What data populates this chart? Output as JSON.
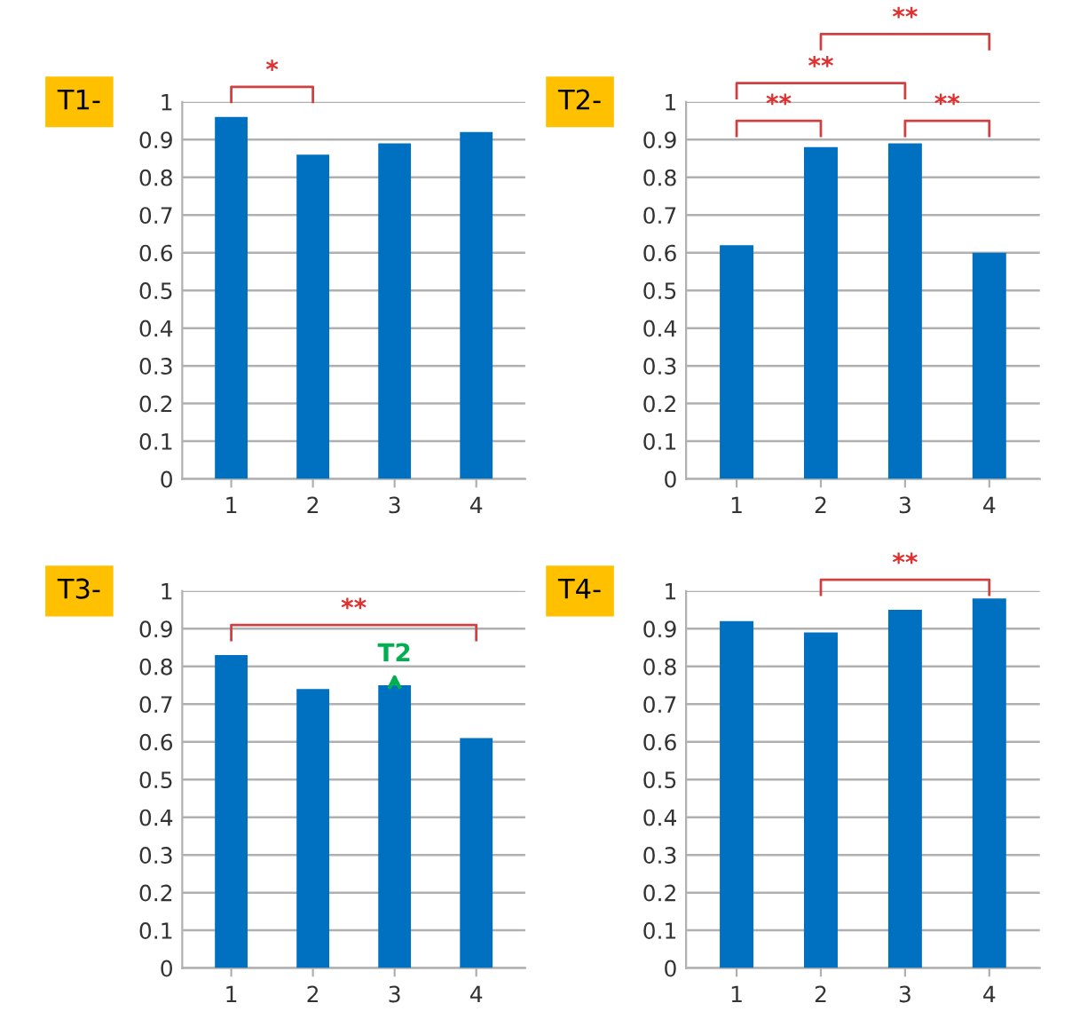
{
  "chart_data": [
    {
      "type": "bar",
      "title": "T1-",
      "categories": [
        "1",
        "2",
        "3",
        "4"
      ],
      "values": [
        0.96,
        0.86,
        0.89,
        0.92
      ],
      "color": "#0070c0",
      "ylim": [
        0,
        1
      ],
      "yticks": [
        0,
        0.1,
        0.2,
        0.3,
        0.4,
        0.5,
        0.6,
        0.7,
        0.8,
        0.9,
        1
      ],
      "grid": "y",
      "annotations": [
        "*"
      ]
    },
    {
      "type": "bar",
      "title": "T2-",
      "categories": [
        "1",
        "2",
        "3",
        "4"
      ],
      "values": [
        0.62,
        0.88,
        0.89,
        0.6
      ],
      "color": "#0070c0",
      "ylim": [
        0,
        1
      ],
      "yticks": [
        0,
        0.1,
        0.2,
        0.3,
        0.4,
        0.5,
        0.6,
        0.7,
        0.8,
        0.9,
        1
      ],
      "grid": "y",
      "annotations": [
        "**",
        "**",
        "**",
        "**"
      ]
    },
    {
      "type": "bar",
      "title": "T3-",
      "categories": [
        "1",
        "2",
        "3",
        "4"
      ],
      "values": [
        0.83,
        0.74,
        0.75,
        0.61
      ],
      "color": "#0070c0",
      "ylim": [
        0,
        1
      ],
      "yticks": [
        0,
        0.1,
        0.2,
        0.3,
        0.4,
        0.5,
        0.6,
        0.7,
        0.8,
        0.9,
        1
      ],
      "grid": "y",
      "annotations": [
        "**",
        {
          "text": "T2",
          "x": "3",
          "y": 0.75
        }
      ]
    },
    {
      "type": "bar",
      "title": "T4-",
      "categories": [
        "1",
        "2",
        "3",
        "4"
      ],
      "values": [
        0.92,
        0.89,
        0.95,
        0.98
      ],
      "color": "#0070c0",
      "ylim": [
        0,
        1
      ],
      "yticks": [
        0,
        0.1,
        0.2,
        0.3,
        0.4,
        0.5,
        0.6,
        0.7,
        0.8,
        0.9,
        1
      ],
      "grid": "y",
      "annotations": [
        "**"
      ]
    }
  ]
}
